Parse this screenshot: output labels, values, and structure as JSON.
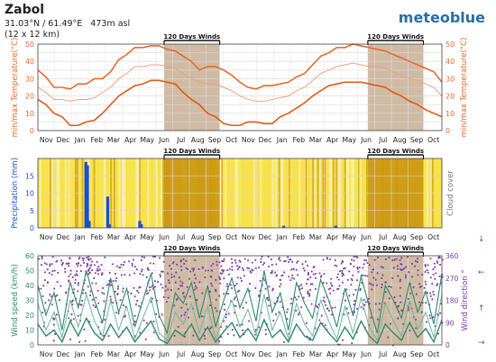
{
  "header": {
    "location": "Zabol",
    "coords": "31.03°N / 61.49°E   473m asl",
    "grid": "(12 x 12 km)",
    "brand": "meteoblue"
  },
  "colors": {
    "temp_max": "#e86a2a",
    "temp_mean": "#f0a080",
    "temp_min": "#e05a10",
    "axis_temp": "#e86a2a",
    "precip_bar": "#1a4fd0",
    "cloud_clear": "#f7e24a",
    "cloud_light": "#faeea0",
    "cloud_dark": "#d6ad2a",
    "wind_speed": "#2f8a6a",
    "wind_speed_max": "#6fb79a",
    "wind_dir": "#7a3aa8",
    "wind_window": "#bfa386",
    "precip_window": "#c9960e"
  },
  "highlight_label": "120 Days Winds",
  "month_labels": [
    "Nov",
    "Dec",
    "Jan",
    "Feb",
    "Mar",
    "Apr",
    "May",
    "Jun",
    "Jul",
    "Aug",
    "Sep",
    "Oct",
    "Nov",
    "Dec",
    "Jan",
    "Feb",
    "Mar",
    "Apr",
    "May",
    "Jun",
    "Jul",
    "Aug",
    "Sep",
    "Oct"
  ],
  "chart_data": [
    {
      "type": "line",
      "name_panel": "temperature",
      "ylabel": "min/max Temperature(°C)",
      "ylabel_right": "min/max Temperature(°C)",
      "ylim": [
        0,
        50
      ],
      "yticks": [
        0,
        5,
        10,
        15,
        20,
        25,
        30,
        35,
        40,
        45,
        50
      ],
      "x_months": 24,
      "highlight_windows_months": [
        [
          7.5,
          10.8
        ],
        [
          19.6,
          22.9
        ]
      ],
      "series": [
        {
          "values": [
            35,
            31,
            25,
            25,
            24,
            27,
            27,
            30,
            30,
            34,
            41,
            44,
            48,
            48,
            49,
            49,
            47,
            46,
            43,
            40,
            35,
            37,
            37,
            35,
            32,
            28,
            25,
            24,
            26,
            26,
            27,
            28,
            31,
            33,
            38,
            43,
            45,
            48,
            48,
            50,
            49,
            48,
            47,
            46,
            44,
            42,
            40,
            38,
            36,
            34,
            28
          ]
        },
        {
          "values": [
            25,
            22,
            18,
            18,
            17,
            18,
            18,
            19,
            22,
            25,
            30,
            33,
            37,
            37,
            38,
            38,
            37,
            36,
            33,
            30,
            28,
            27,
            27,
            25,
            23,
            20,
            18,
            17,
            17,
            18,
            19,
            20,
            23,
            25,
            29,
            33,
            35,
            37,
            38,
            39,
            38,
            37,
            37,
            36,
            34,
            32,
            30,
            29,
            27,
            25,
            20
          ]
        },
        {
          "values": [
            18,
            15,
            10,
            8,
            3,
            3,
            5,
            6,
            10,
            15,
            20,
            23,
            26,
            27,
            29,
            29,
            28,
            27,
            22,
            18,
            15,
            10,
            8,
            4,
            3,
            3,
            5,
            5,
            4,
            4,
            8,
            10,
            13,
            16,
            20,
            23,
            26,
            27,
            28,
            28,
            28,
            27,
            26,
            25,
            22,
            20,
            17,
            15,
            12,
            10,
            8
          ]
        }
      ]
    },
    {
      "type": "bar",
      "name_panel": "precipitation",
      "ylabel": "Precipitation (mm)",
      "ylabel_right": "Cloud cover",
      "ylim": [
        0,
        20
      ],
      "yticks": [
        0,
        5,
        10,
        15
      ],
      "x_months": 24,
      "highlight_windows_months": [
        [
          7.5,
          10.8
        ],
        [
          19.6,
          22.9
        ]
      ],
      "bars": [
        {
          "month": 2.85,
          "value": 19
        },
        {
          "month": 2.95,
          "value": 18
        },
        {
          "month": 3.05,
          "value": 2
        },
        {
          "month": 4.15,
          "value": 9
        },
        {
          "month": 4.25,
          "value": 1
        },
        {
          "month": 6.05,
          "value": 2
        },
        {
          "month": 6.15,
          "value": 1
        },
        {
          "month": 14.6,
          "value": 0.6
        },
        {
          "month": 17.7,
          "value": 0.6
        }
      ]
    },
    {
      "type": "line",
      "name_panel": "wind",
      "ylabel": "Wind speed (km/h)",
      "ylabel_right": "Wind direction °",
      "ylim": [
        0,
        60
      ],
      "yticks": [
        0,
        10,
        20,
        30,
        40,
        50,
        60
      ],
      "y2lim": [
        0,
        360
      ],
      "y2ticks": [
        0,
        90,
        180,
        270,
        360
      ],
      "x_months": 24,
      "highlight_windows_months": [
        [
          7.5,
          10.8
        ],
        [
          19.6,
          22.9
        ]
      ],
      "series": [
        {
          "values": [
            40,
            20,
            35,
            10,
            42,
            25,
            50,
            30,
            15,
            45,
            22,
            38,
            12,
            30,
            48,
            20,
            8,
            35,
            28,
            42,
            18,
            40,
            12,
            30,
            45,
            25,
            38,
            16,
            50,
            22,
            35,
            10,
            42,
            28,
            18,
            44,
            30,
            12,
            38,
            20,
            46,
            26,
            8,
            40,
            30,
            18,
            42,
            22,
            36,
            14,
            48
          ]
        },
        {
          "values": [
            28,
            10,
            22,
            5,
            30,
            12,
            34,
            16,
            6,
            30,
            10,
            26,
            4,
            18,
            32,
            8,
            3,
            22,
            14,
            28,
            8,
            26,
            4,
            18,
            30,
            12,
            24,
            6,
            34,
            10,
            22,
            4,
            28,
            14,
            6,
            30,
            16,
            4,
            26,
            8,
            32,
            12,
            3,
            28,
            16,
            6,
            30,
            10,
            22,
            5,
            34
          ]
        },
        {
          "values": [
            14,
            6,
            10,
            2,
            16,
            6,
            18,
            8,
            3,
            14,
            5,
            12,
            2,
            9,
            16,
            4,
            1,
            10,
            6,
            14,
            3,
            12,
            2,
            9,
            15,
            5,
            11,
            3,
            17,
            5,
            10,
            2,
            14,
            6,
            3,
            15,
            8,
            2,
            12,
            4,
            16,
            6,
            1,
            14,
            8,
            3,
            15,
            5,
            11,
            2,
            17
          ]
        }
      ]
    }
  ]
}
